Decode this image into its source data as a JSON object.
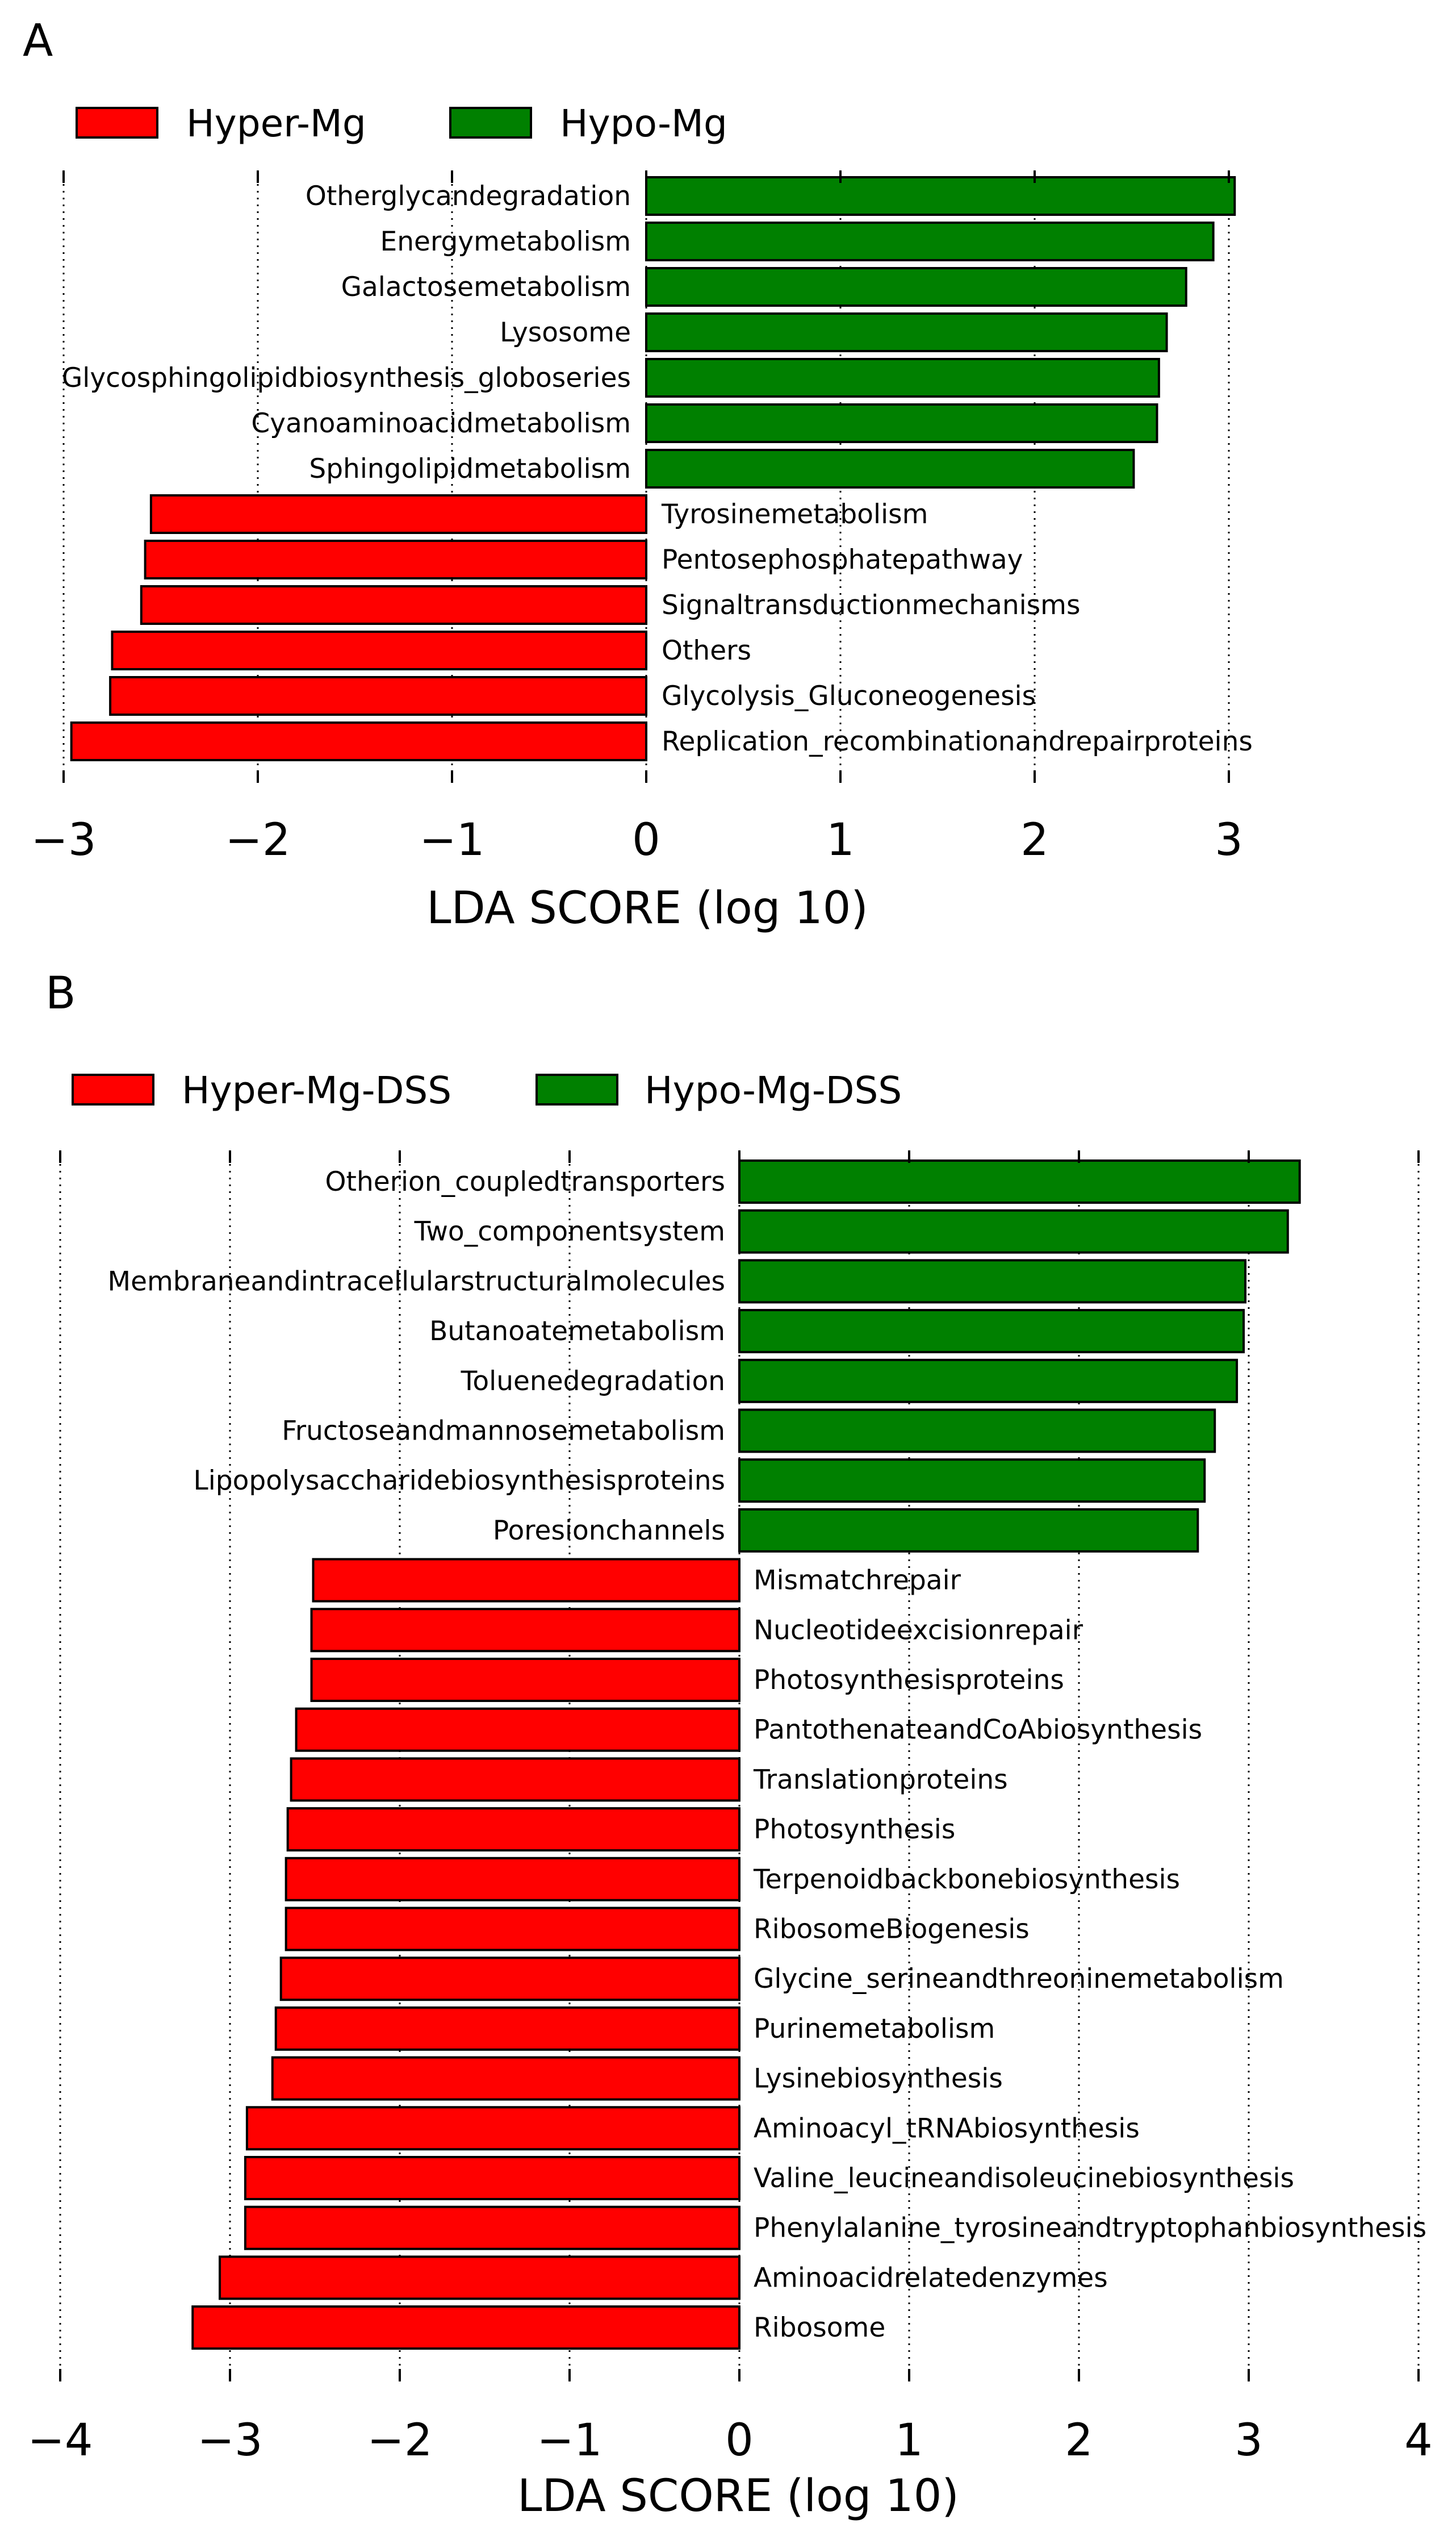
{
  "chart_data": [
    {
      "panel": "A",
      "type": "bar",
      "orientation": "horizontal",
      "xlabel": "LDA SCORE (log 10)",
      "ylabel": "",
      "xlim": [
        -3,
        3
      ],
      "xticks": [
        -3,
        -2,
        -1,
        0,
        1,
        2,
        3
      ],
      "xtick_labels": [
        "−3",
        "−2",
        "−1",
        "0",
        "1",
        "2",
        "3"
      ],
      "grid": "vertical dotted at ticks",
      "legend_position": "top-left",
      "series": [
        {
          "name": "Hyper-Mg",
          "color": "#ff0000"
        },
        {
          "name": "Hypo-Mg",
          "color": "#008000"
        }
      ],
      "categories": [
        "Otherglycandegradation",
        "Energymetabolism",
        "Galactosemetabolism",
        "Lysosome",
        "Glycosphingolipidbiosynthesis_globoseries",
        "Cyanoaminoacidmetabolism",
        "Sphingolipidmetabolism",
        "Tyrosinemetabolism",
        "Pentosephosphatepathway",
        "Signaltransductionmechanisms",
        "Others",
        "Glycolysis_Gluconeogenesis",
        "Replication_recombinationandrepairproteins"
      ],
      "values": [
        3.03,
        2.92,
        2.78,
        2.68,
        2.64,
        2.63,
        2.51,
        -2.55,
        -2.58,
        -2.6,
        -2.75,
        -2.76,
        -2.96
      ],
      "groups": [
        "Hypo-Mg",
        "Hypo-Mg",
        "Hypo-Mg",
        "Hypo-Mg",
        "Hypo-Mg",
        "Hypo-Mg",
        "Hypo-Mg",
        "Hyper-Mg",
        "Hyper-Mg",
        "Hyper-Mg",
        "Hyper-Mg",
        "Hyper-Mg",
        "Hyper-Mg"
      ]
    },
    {
      "panel": "B",
      "type": "bar",
      "orientation": "horizontal",
      "xlabel": "LDA SCORE (log 10)",
      "ylabel": "",
      "xlim": [
        -4,
        4
      ],
      "xticks": [
        -4,
        -3,
        -2,
        -1,
        0,
        1,
        2,
        3,
        4
      ],
      "xtick_labels": [
        "−4",
        "−3",
        "−2",
        "−1",
        "0",
        "1",
        "2",
        "3",
        "4"
      ],
      "grid": "vertical dotted at ticks",
      "legend_position": "top-left",
      "series": [
        {
          "name": "Hyper-Mg-DSS",
          "color": "#ff0000"
        },
        {
          "name": "Hypo-Mg-DSS",
          "color": "#008000"
        }
      ],
      "categories": [
        "Otherion_coupledtransporters",
        "Two_componentsystem",
        "Membraneandintracellularstructuralmolecules",
        "Butanoatemetabolism",
        "Toluenedegradation",
        "Fructoseandmannosemetabolism",
        "Lipopolysaccharidebiosynthesisproteins",
        "Poresionchannels",
        "Mismatchrepair",
        "Nucleotideexcisionrepair",
        "Photosynthesisproteins",
        "PantothenateandCoAbiosynthesis",
        "Translationproteins",
        "Photosynthesis",
        "Terpenoidbackbonebiosynthesis",
        "RibosomeBiogenesis",
        "Glycine_serineandthreoninemetabolism",
        "Purinemetabolism",
        "Lysinebiosynthesis",
        "Aminoacyl_tRNAbiosynthesis",
        "Valine_leucineandisoleucinebiosynthesis",
        "Phenylalanine_tyrosineandtryptophanbiosynthesis",
        "Aminoacidrelatedenzymes",
        "Ribosome"
      ],
      "values": [
        3.3,
        3.23,
        2.98,
        2.97,
        2.93,
        2.8,
        2.74,
        2.7,
        -2.51,
        -2.52,
        -2.52,
        -2.61,
        -2.64,
        -2.66,
        -2.67,
        -2.67,
        -2.7,
        -2.73,
        -2.75,
        -2.9,
        -2.91,
        -2.91,
        -3.06,
        -3.22
      ],
      "groups": [
        "Hypo-Mg-DSS",
        "Hypo-Mg-DSS",
        "Hypo-Mg-DSS",
        "Hypo-Mg-DSS",
        "Hypo-Mg-DSS",
        "Hypo-Mg-DSS",
        "Hypo-Mg-DSS",
        "Hypo-Mg-DSS",
        "Hyper-Mg-DSS",
        "Hyper-Mg-DSS",
        "Hyper-Mg-DSS",
        "Hyper-Mg-DSS",
        "Hyper-Mg-DSS",
        "Hyper-Mg-DSS",
        "Hyper-Mg-DSS",
        "Hyper-Mg-DSS",
        "Hyper-Mg-DSS",
        "Hyper-Mg-DSS",
        "Hyper-Mg-DSS",
        "Hyper-Mg-DSS",
        "Hyper-Mg-DSS",
        "Hyper-Mg-DSS",
        "Hyper-Mg-DSS",
        "Hyper-Mg-DSS"
      ]
    }
  ]
}
